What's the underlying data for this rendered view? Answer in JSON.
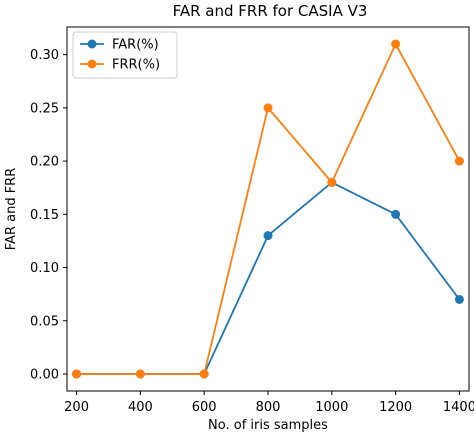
{
  "chart_data": {
    "type": "line",
    "title": "FAR and FRR for CASIA V3",
    "xlabel": "No. of iris samples",
    "ylabel": "FAR and FRR",
    "x": [
      200,
      400,
      600,
      800,
      1000,
      1200,
      1400
    ],
    "xlim": [
      170,
      1430
    ],
    "ylim": [
      -0.016,
      0.326
    ],
    "xticks": [
      200,
      400,
      600,
      800,
      1000,
      1200,
      1400
    ],
    "yticks": [
      0.0,
      0.05,
      0.1,
      0.15,
      0.2,
      0.25,
      0.3
    ],
    "ytick_labels": [
      "0.00",
      "0.05",
      "0.10",
      "0.15",
      "0.20",
      "0.25",
      "0.30"
    ],
    "grid": false,
    "legend_position": "top-left",
    "series": [
      {
        "name": "FAR(%)",
        "color": "#1f77b4",
        "values": [
          0.0,
          0.0,
          0.0,
          0.13,
          0.18,
          0.15,
          0.07
        ]
      },
      {
        "name": "FRR(%)",
        "color": "#ff7f0e",
        "values": [
          0.0,
          0.0,
          0.0,
          0.25,
          0.18,
          0.31,
          0.2
        ]
      }
    ]
  }
}
